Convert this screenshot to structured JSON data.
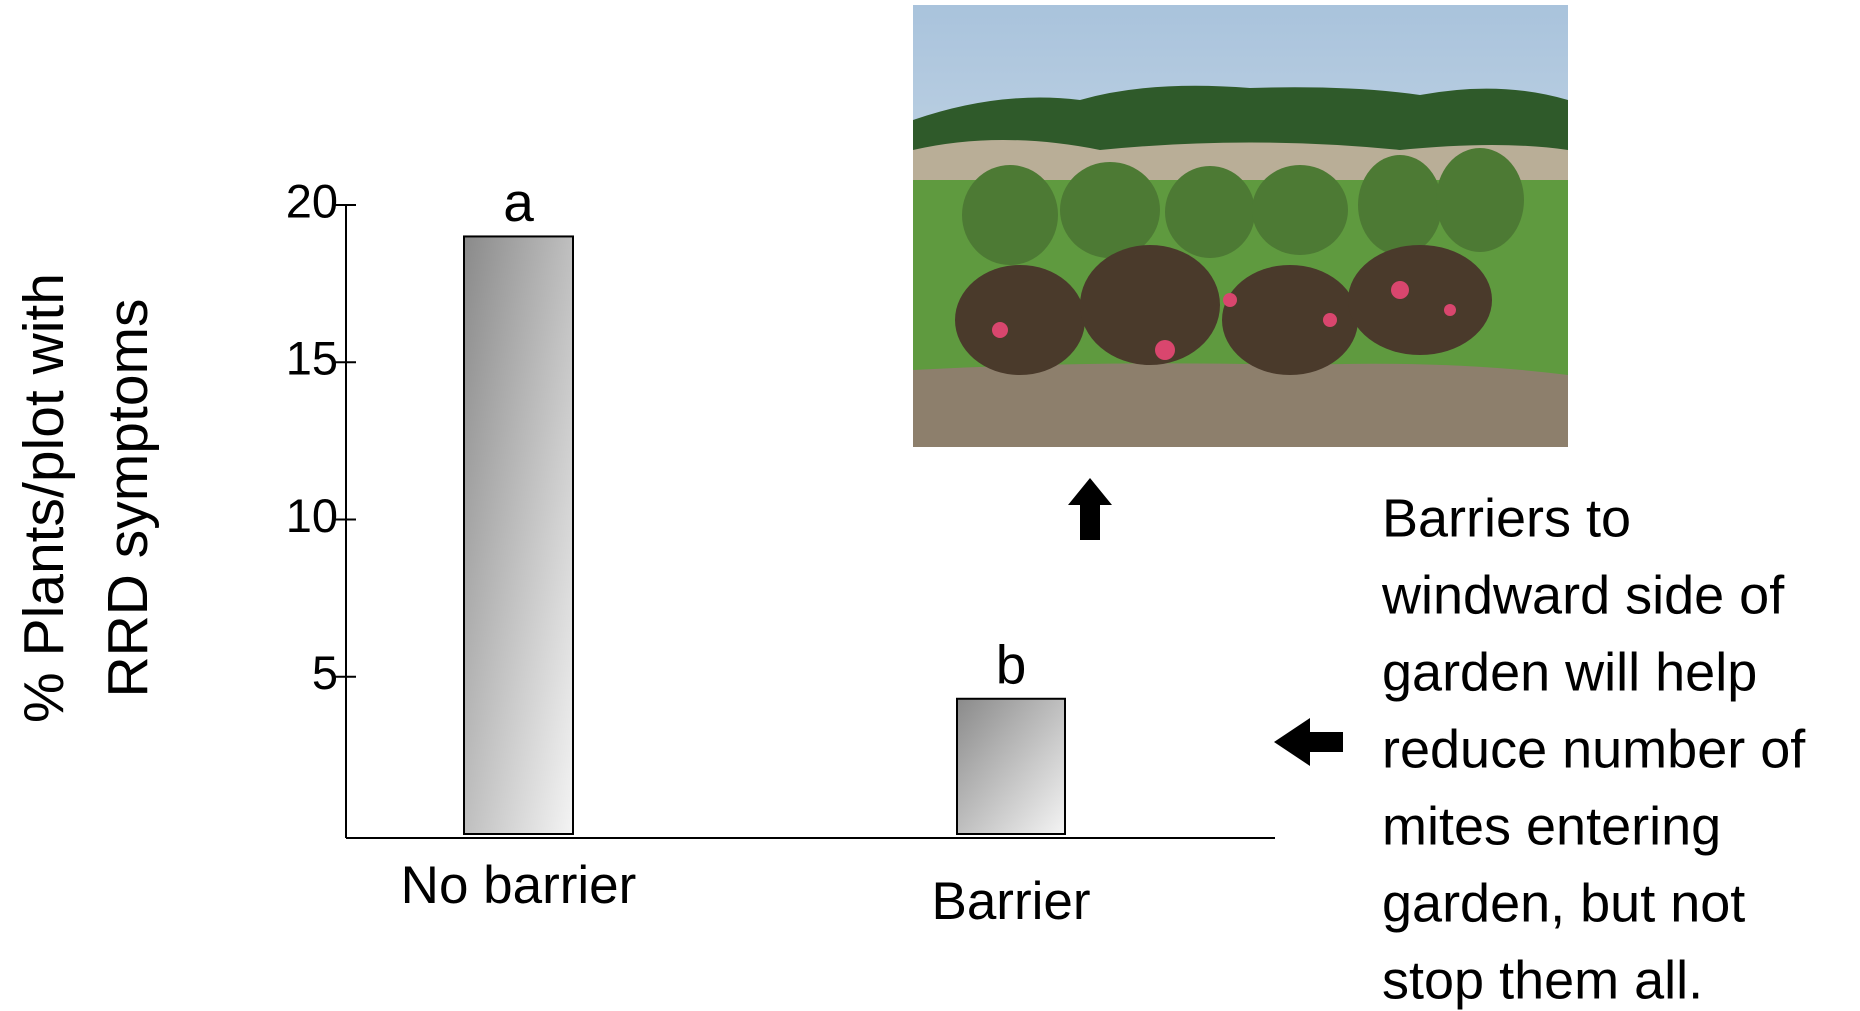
{
  "chart_data": {
    "type": "bar",
    "y_label_lines": [
      "% Plants/plot with",
      "RRD symptoms"
    ],
    "categories": [
      "No barrier",
      "Barrier"
    ],
    "values": [
      19,
      4.3
    ],
    "annotations": [
      "a",
      "b"
    ],
    "ylim": [
      0,
      20
    ],
    "yticks": [
      5,
      10,
      15,
      20
    ],
    "note_lines": [
      "Barriers to",
      "windward side of",
      "garden will help",
      "reduce number of",
      "mites entering",
      "garden, but not",
      "stop them all."
    ]
  }
}
